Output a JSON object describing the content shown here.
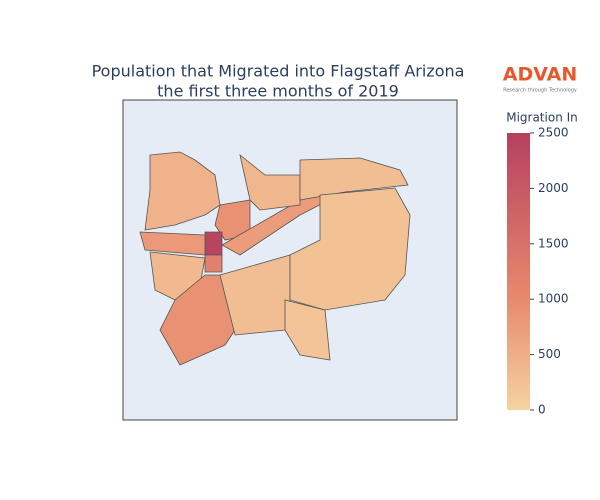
{
  "chart_data": {
    "type": "choropleth",
    "title": [
      "Population that Migrated into Flagstaff Arizona",
      "the first three months of 2019"
    ],
    "colorbar_title": "Migration In",
    "zlim": [
      0,
      2500
    ],
    "zticks": [
      0,
      500,
      1000,
      1500,
      2000,
      2500
    ],
    "colorscale": [
      [
        0,
        "#f5d3a1"
      ],
      [
        0.4,
        "#e88a6e"
      ],
      [
        1,
        "#b5405f"
      ]
    ],
    "values": [
      450,
      900,
      2400,
      1200,
      800,
      350,
      900,
      300,
      750,
      400,
      300,
      250,
      200
    ],
    "logo": {
      "name": "ADVAN",
      "tagline": "Research through Technology"
    }
  }
}
